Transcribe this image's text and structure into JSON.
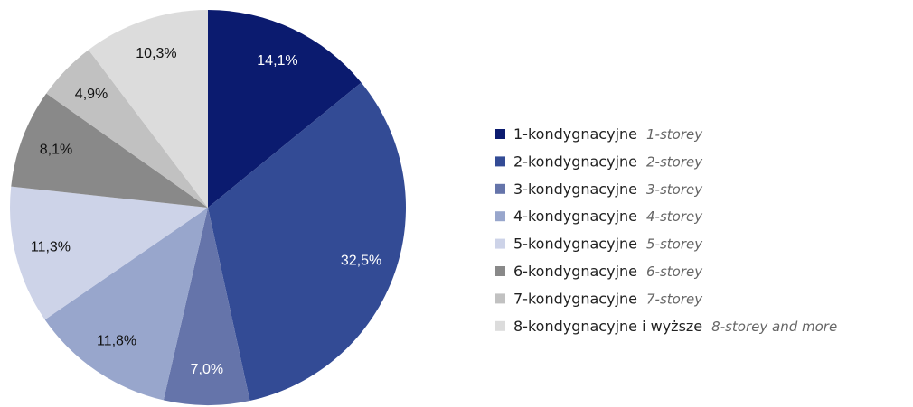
{
  "chart_data": {
    "type": "pie",
    "categories": [
      "1-kondygnacyjne",
      "2-kondygnacyjne",
      "3-kondygnacyjne",
      "4-kondygnacyjne",
      "5-kondygnacyjne",
      "6-kondygnacyjne",
      "7-kondygnacyjne",
      "8-kondygnacyjne i wyższe"
    ],
    "categories_en": [
      "1-storey",
      "2-storey",
      "3-storey",
      "4-storey",
      "5-storey",
      "6-storey",
      "7-storey",
      "8-storey and more"
    ],
    "values": [
      14.1,
      32.5,
      7.0,
      11.8,
      11.3,
      8.1,
      4.9,
      10.3
    ],
    "value_labels": [
      "14,1%",
      "32,5%",
      "7,0%",
      "11,8%",
      "11,3%",
      "8,1%",
      "4,9%",
      "10,3%"
    ],
    "colors": [
      "#0b1b6f",
      "#334b95",
      "#6574aa",
      "#98a6cc",
      "#cdd3e8",
      "#898989",
      "#c1c1c1",
      "#dcdcdc"
    ],
    "legend": "right"
  }
}
